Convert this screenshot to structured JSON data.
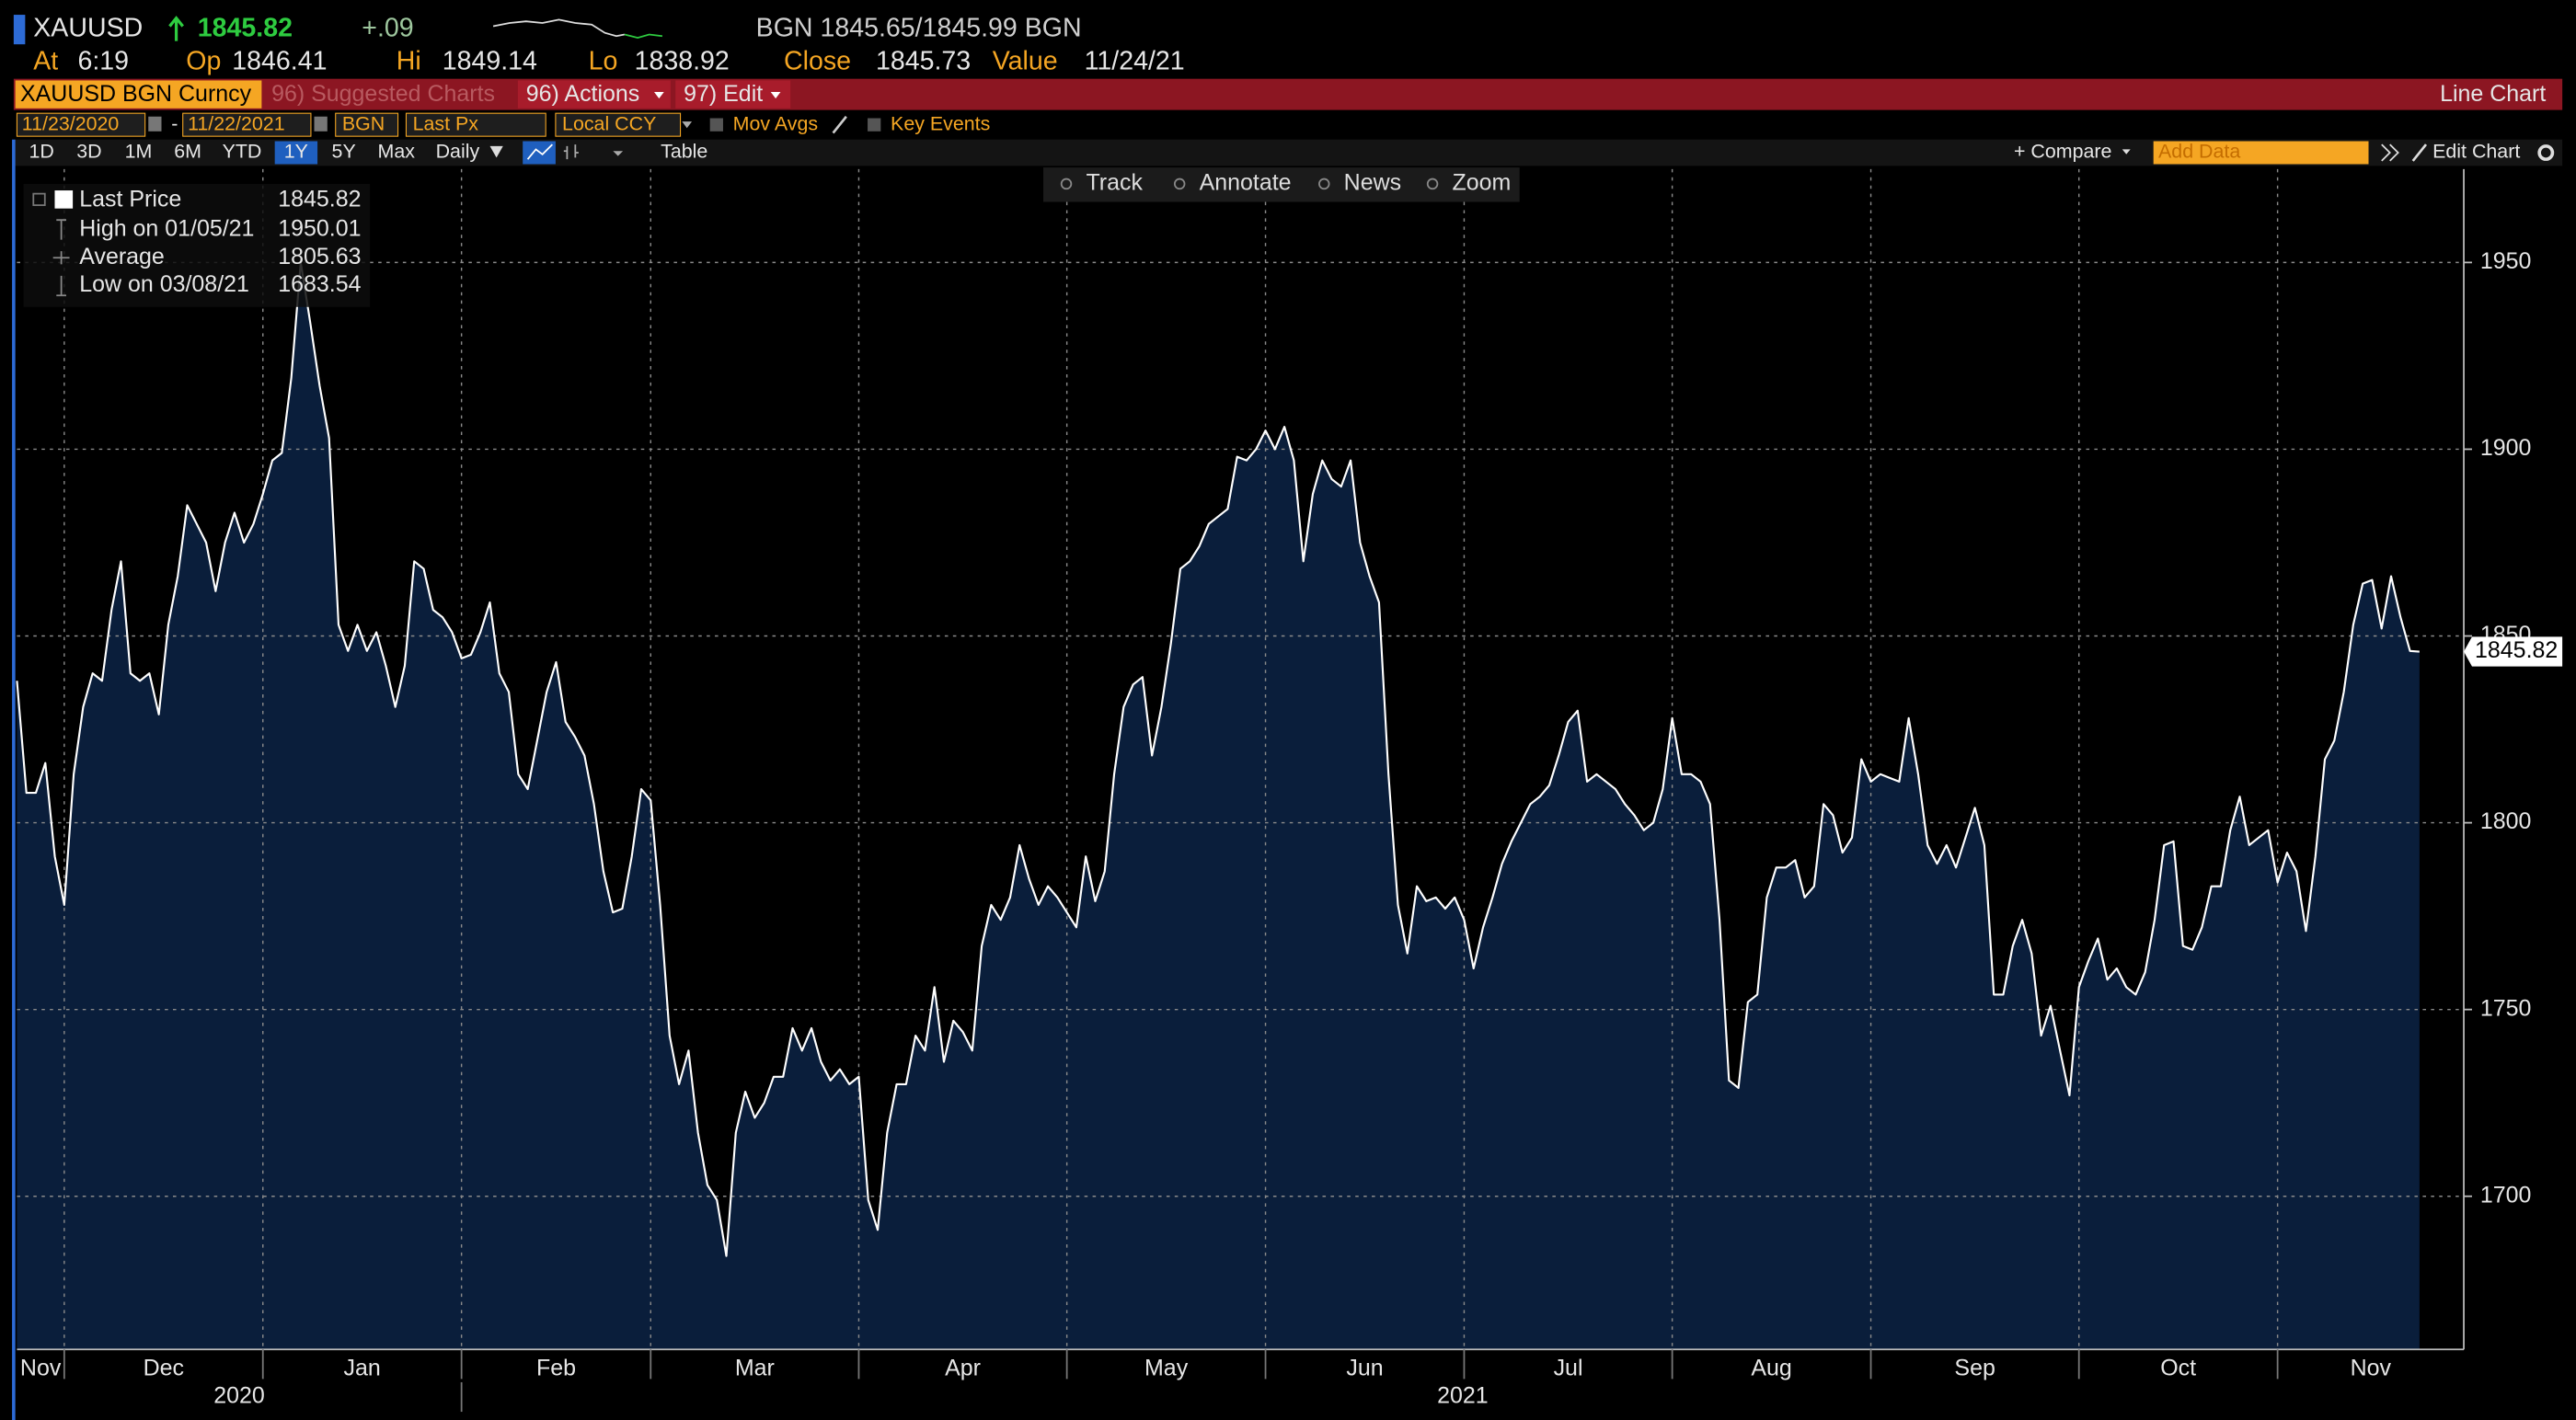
{
  "header": {
    "ticker": "XAUUSD",
    "price": "1845.82",
    "change": "+.09",
    "quote": "BGN 1845.65/1845.99 BGN",
    "stats": [
      {
        "label": "At",
        "value": "6:19"
      },
      {
        "label": "Op",
        "value": "1846.41"
      },
      {
        "label": "Hi",
        "value": "1849.14"
      },
      {
        "label": "Lo",
        "value": "1838.92"
      },
      {
        "label": "Close",
        "value": "1845.73"
      },
      {
        "label": "Value",
        "value": "11/24/21"
      }
    ]
  },
  "menu": {
    "security": "XAUUSD BGN Curncy",
    "suggested": "96) Suggested Charts",
    "actions": "96) Actions",
    "edit": "97) Edit",
    "view": "Line Chart"
  },
  "settings": {
    "start": "11/23/2020",
    "separator": "-",
    "end": "11/22/2021",
    "source": "BGN",
    "field": "Last Px",
    "currency": "Local CCY",
    "mov_avgs": "Mov Avgs",
    "key_events": "Key Events"
  },
  "periods": [
    "1D",
    "3D",
    "1M",
    "6M",
    "YTD",
    "1Y",
    "5Y",
    "Max"
  ],
  "frequency": "Daily",
  "table": "Table",
  "compare": "+ Compare",
  "add_data": "Add Data",
  "edit_chart": "Edit Chart",
  "tools": [
    "Track",
    "Annotate",
    "News",
    "Zoom"
  ],
  "legend": [
    {
      "label": "Last Price",
      "value": "1845.82"
    },
    {
      "label": "High on 01/05/21",
      "value": "1950.01"
    },
    {
      "label": "Average",
      "value": "1805.63"
    },
    {
      "label": "Low on 03/08/21",
      "value": "1683.54"
    }
  ],
  "chart_data": {
    "type": "area",
    "color": "#ffffff",
    "fill": "#0a1e3b",
    "values": [
      1838,
      1808,
      1808,
      1816,
      1791,
      1778,
      1813,
      1831,
      1840,
      1838,
      1857,
      1870,
      1840,
      1838,
      1840,
      1829,
      1853,
      1866,
      1885,
      1880,
      1875,
      1862,
      1875,
      1883,
      1875,
      1880,
      1888,
      1897,
      1899,
      1919,
      1950,
      1934,
      1917,
      1903,
      1853,
      1846,
      1853,
      1846,
      1851,
      1842,
      1831,
      1842,
      1870,
      1868,
      1857,
      1855,
      1851,
      1844,
      1845,
      1851,
      1859,
      1840,
      1835,
      1813,
      1809,
      1822,
      1835,
      1843,
      1827,
      1823,
      1818,
      1805,
      1787,
      1776,
      1777,
      1791,
      1809,
      1806,
      1778,
      1743,
      1730,
      1739,
      1717,
      1703,
      1699,
      1684,
      1717,
      1728,
      1721,
      1725,
      1732,
      1732,
      1745,
      1739,
      1745,
      1736,
      1731,
      1734,
      1730,
      1732,
      1699,
      1691,
      1717,
      1730,
      1730,
      1743,
      1739,
      1756,
      1736,
      1747,
      1744,
      1739,
      1767,
      1778,
      1774,
      1780,
      1794,
      1785,
      1778,
      1783,
      1780,
      1776,
      1772,
      1791,
      1779,
      1787,
      1813,
      1831,
      1837,
      1839,
      1818,
      1831,
      1848,
      1868,
      1870,
      1874,
      1880,
      1882,
      1884,
      1898,
      1897,
      1900,
      1905,
      1900,
      1906,
      1897,
      1870,
      1888,
      1897,
      1892,
      1890,
      1897,
      1875,
      1866,
      1859,
      1813,
      1778,
      1765,
      1783,
      1779,
      1780,
      1777,
      1780,
      1774,
      1761,
      1772,
      1780,
      1789,
      1795,
      1800,
      1805,
      1807,
      1810,
      1818,
      1827,
      1830,
      1811,
      1813,
      1811,
      1809,
      1805,
      1802,
      1798,
      1800,
      1809,
      1828,
      1813,
      1813,
      1811,
      1805,
      1774,
      1731,
      1729,
      1752,
      1754,
      1780,
      1788,
      1788,
      1790,
      1780,
      1783,
      1805,
      1802,
      1792,
      1796,
      1817,
      1811,
      1813,
      1812,
      1811,
      1828,
      1813,
      1794,
      1789,
      1794,
      1788,
      1796,
      1804,
      1794,
      1754,
      1754,
      1767,
      1774,
      1765,
      1743,
      1751,
      1739,
      1727,
      1756,
      1763,
      1769,
      1758,
      1761,
      1756,
      1754,
      1760,
      1774,
      1794,
      1795,
      1767,
      1766,
      1772,
      1783,
      1783,
      1798,
      1807,
      1794,
      1796,
      1798,
      1784,
      1792,
      1787,
      1771,
      1791,
      1817,
      1822,
      1835,
      1853,
      1864,
      1865,
      1852,
      1866,
      1855,
      1846,
      1845.82
    ],
    "last_label": "1845.82",
    "xticks": [
      5,
      26,
      47,
      67,
      89,
      111,
      132,
      153,
      175,
      196,
      218,
      239
    ],
    "x_labels": [
      "Nov",
      "Dec",
      "Jan",
      "Feb",
      "Mar",
      "Apr",
      "May",
      "Jun",
      "Jul",
      "Aug",
      "Sep",
      "Oct",
      "Nov"
    ],
    "x_year_labels": [
      "2020",
      "2021"
    ],
    "ylim": [
      1659,
      1975
    ],
    "yticks": [
      1700,
      1750,
      1800,
      1850,
      1900,
      1950
    ],
    "grid": true
  }
}
